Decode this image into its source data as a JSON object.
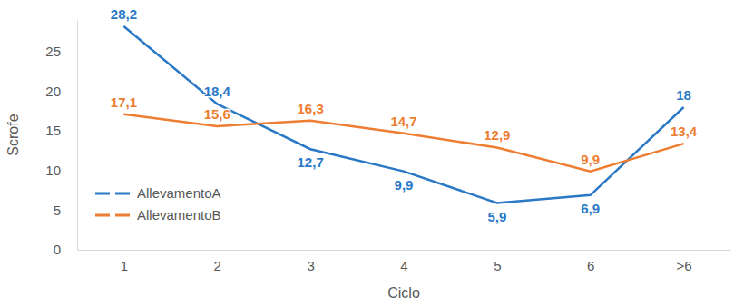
{
  "chart_data": {
    "type": "line",
    "xlabel": "Ciclo",
    "ylabel": "Scrofe",
    "categories": [
      "1",
      "2",
      "3",
      "4",
      "5",
      "6",
      ">6"
    ],
    "series": [
      {
        "name": "AllevamentoA",
        "color": "#2a79c6",
        "values": [
          28.2,
          18.4,
          12.7,
          9.9,
          5.9,
          6.9,
          18
        ],
        "value_labels": [
          "28,2",
          "18,4",
          "12,7",
          "9,9",
          "5,9",
          "6,9",
          "18"
        ]
      },
      {
        "name": "AllevamentoB",
        "color": "#ed7d31",
        "values": [
          17.1,
          15.6,
          16.3,
          14.7,
          12.9,
          9.9,
          13.4
        ],
        "value_labels": [
          "17,1",
          "15,6",
          "16,3",
          "14,7",
          "12,9",
          "9,9",
          "13,4"
        ]
      }
    ],
    "ylim": [
      0,
      29
    ],
    "yticks": [
      0,
      5,
      10,
      15,
      20,
      25
    ],
    "grid": false,
    "legend": "lower left",
    "data_labels": true,
    "line_style": "solid"
  }
}
